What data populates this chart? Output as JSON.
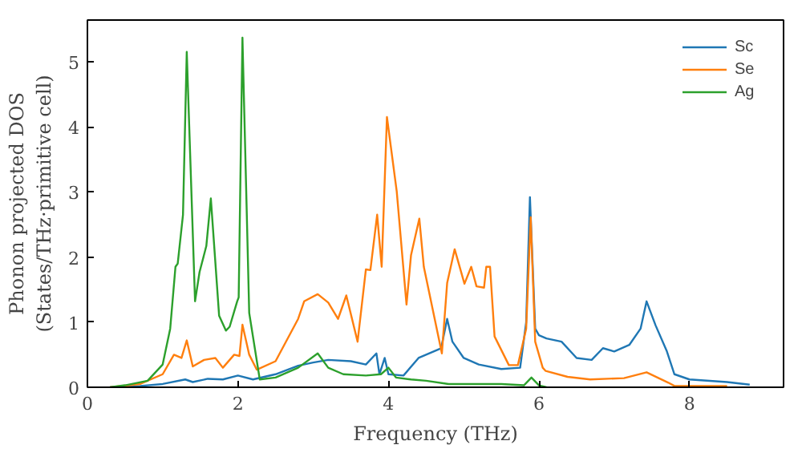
{
  "chart_data": {
    "type": "line",
    "xlabel": "Frequency (THz)",
    "ylabel": "Phonon projected DOS\n(States/THz·primitive cell)",
    "xlim": [
      0,
      9.25
    ],
    "ylim": [
      0,
      5.64
    ],
    "xticks": [
      0,
      2,
      4,
      6,
      8
    ],
    "yticks": [
      0,
      1,
      2,
      3,
      4,
      5
    ],
    "grid": false,
    "legend": "top right",
    "series": [
      {
        "name": "Sc",
        "color": "#1f77b4",
        "x": [
          0.3,
          0.7,
          1.0,
          1.3,
          1.4,
          1.6,
          1.8,
          2.0,
          2.2,
          2.5,
          2.8,
          3.0,
          3.2,
          3.5,
          3.7,
          3.84,
          3.88,
          3.95,
          4.0,
          4.2,
          4.4,
          4.6,
          4.7,
          4.78,
          4.85,
          5.0,
          5.2,
          5.5,
          5.75,
          5.83,
          5.88,
          5.95,
          6.0,
          6.1,
          6.3,
          6.5,
          6.7,
          6.85,
          7.0,
          7.2,
          7.35,
          7.43,
          7.55,
          7.7,
          7.8,
          8.0,
          8.5,
          8.8
        ],
        "values": [
          0.0,
          0.02,
          0.05,
          0.12,
          0.08,
          0.13,
          0.12,
          0.18,
          0.12,
          0.2,
          0.33,
          0.38,
          0.42,
          0.4,
          0.35,
          0.52,
          0.2,
          0.45,
          0.2,
          0.18,
          0.45,
          0.55,
          0.6,
          1.05,
          0.7,
          0.45,
          0.35,
          0.28,
          0.3,
          1.0,
          2.92,
          0.9,
          0.8,
          0.75,
          0.7,
          0.45,
          0.42,
          0.6,
          0.55,
          0.65,
          0.9,
          1.32,
          0.95,
          0.55,
          0.2,
          0.12,
          0.08,
          0.04
        ]
      },
      {
        "name": "Se",
        "color": "#ff7f0e",
        "x": [
          0.3,
          0.7,
          1.0,
          1.15,
          1.25,
          1.32,
          1.4,
          1.55,
          1.7,
          1.8,
          1.95,
          2.02,
          2.06,
          2.15,
          2.25,
          2.5,
          2.8,
          2.88,
          3.06,
          3.2,
          3.33,
          3.44,
          3.59,
          3.7,
          3.76,
          3.85,
          3.91,
          3.98,
          4.11,
          4.24,
          4.3,
          4.41,
          4.47,
          4.71,
          4.78,
          4.88,
          5.01,
          5.1,
          5.17,
          5.27,
          5.3,
          5.35,
          5.41,
          5.6,
          5.72,
          5.83,
          5.89,
          5.95,
          6.05,
          6.09,
          6.38,
          6.68,
          7.13,
          7.43,
          7.72,
          7.8,
          8.5
        ],
        "values": [
          0.0,
          0.05,
          0.2,
          0.5,
          0.45,
          0.72,
          0.32,
          0.42,
          0.45,
          0.3,
          0.5,
          0.48,
          0.96,
          0.5,
          0.27,
          0.4,
          1.05,
          1.32,
          1.43,
          1.3,
          1.05,
          1.41,
          0.7,
          1.81,
          1.8,
          2.65,
          1.85,
          4.15,
          3.01,
          1.27,
          2.03,
          2.59,
          1.85,
          0.52,
          1.6,
          2.12,
          1.59,
          1.85,
          1.55,
          1.53,
          1.85,
          1.85,
          0.78,
          0.34,
          0.34,
          0.9,
          2.61,
          0.7,
          0.3,
          0.25,
          0.16,
          0.12,
          0.14,
          0.23,
          0.07,
          0.02,
          0.02
        ]
      },
      {
        "name": "Ag",
        "color": "#2ca02c",
        "x": [
          0.3,
          0.5,
          0.8,
          1.0,
          1.1,
          1.17,
          1.2,
          1.27,
          1.32,
          1.43,
          1.49,
          1.58,
          1.64,
          1.75,
          1.84,
          1.89,
          1.99,
          2.01,
          2.06,
          2.15,
          2.29,
          2.5,
          2.8,
          3.06,
          3.2,
          3.4,
          3.7,
          3.9,
          4.0,
          4.1,
          4.3,
          4.5,
          4.8,
          5.0,
          5.5,
          5.8,
          5.9,
          6.0,
          6.1
        ],
        "values": [
          0.0,
          0.03,
          0.1,
          0.35,
          0.9,
          1.85,
          1.9,
          2.65,
          5.15,
          1.32,
          1.77,
          2.17,
          2.9,
          1.1,
          0.87,
          0.93,
          1.32,
          1.38,
          5.37,
          1.14,
          0.12,
          0.15,
          0.3,
          0.52,
          0.3,
          0.2,
          0.18,
          0.2,
          0.3,
          0.15,
          0.12,
          0.1,
          0.05,
          0.05,
          0.05,
          0.03,
          0.15,
          0.03,
          0.0
        ]
      }
    ]
  }
}
